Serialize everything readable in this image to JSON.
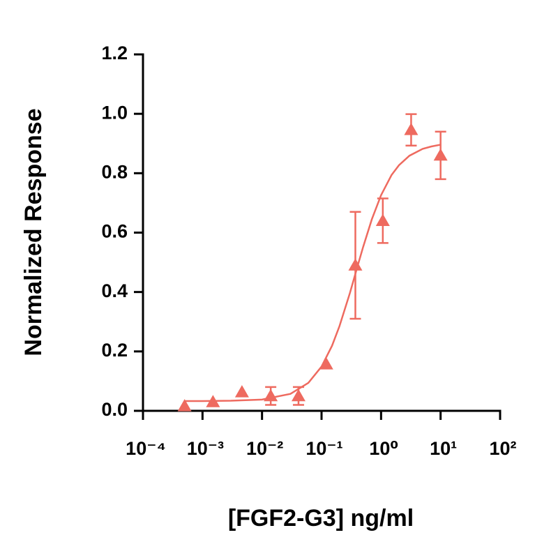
{
  "chart_data": {
    "type": "scatter",
    "xlabel": "[FGF2-G3] ng/ml",
    "ylabel": "Normalized Response",
    "x_scale": "log",
    "color": "#ee6a5f",
    "marker": "triangle",
    "x": [
      0.0005,
      0.0015,
      0.0046,
      0.014,
      0.041,
      0.12,
      0.37,
      1.07,
      3.2,
      10
    ],
    "values": [
      0.016,
      0.03,
      0.063,
      0.05,
      0.05,
      0.157,
      0.49,
      0.64,
      0.946,
      0.86
    ],
    "errors": [
      null,
      null,
      null,
      0.03,
      0.03,
      null,
      0.18,
      0.075,
      0.053,
      0.08
    ],
    "curve": {
      "x": [
        0.0005,
        0.001,
        0.003,
        0.01,
        0.03,
        0.06,
        0.1,
        0.15,
        0.2,
        0.3,
        0.4,
        0.5,
        0.7,
        1,
        1.5,
        2,
        3,
        5,
        7,
        10
      ],
      "y": [
        0.033,
        0.033,
        0.034,
        0.038,
        0.057,
        0.094,
        0.149,
        0.219,
        0.285,
        0.397,
        0.485,
        0.552,
        0.645,
        0.726,
        0.794,
        0.827,
        0.859,
        0.882,
        0.89,
        0.896
      ]
    },
    "xlim": [
      0.0001,
      100
    ],
    "xticks": [
      {
        "value": 0.0001,
        "label": "10⁻⁴"
      },
      {
        "value": 0.001,
        "label": "10⁻³"
      },
      {
        "value": 0.01,
        "label": "10⁻²"
      },
      {
        "value": 0.1,
        "label": "10⁻¹"
      },
      {
        "value": 1,
        "label": "10⁰"
      },
      {
        "value": 10,
        "label": "10¹"
      },
      {
        "value": 100,
        "label": "10²"
      }
    ],
    "ylim": [
      0,
      1.2
    ],
    "yticks": [
      {
        "value": 0,
        "label": "0.0"
      },
      0.2,
      0.4,
      0.6,
      0.8,
      {
        "value": 1,
        "label": "1.0"
      },
      1.2
    ],
    "grid": false
  }
}
